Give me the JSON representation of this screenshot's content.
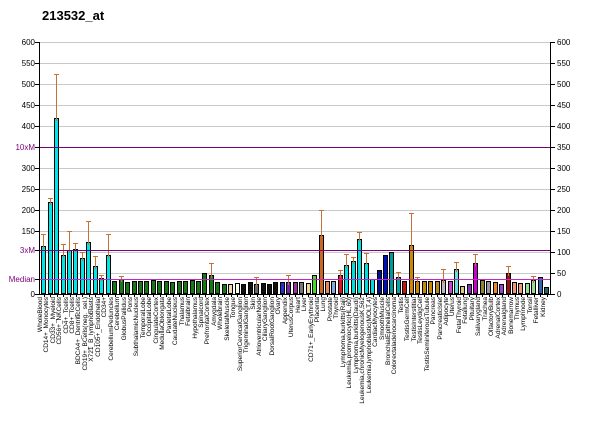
{
  "title": "213532_at",
  "colors": {
    "background": "#ffffff",
    "gridline": "#c9c9c9",
    "axis": "#000000",
    "error_bar": "#c87137",
    "ref_line_purple": "#7a007a",
    "ref_line_median": "#cc22cc",
    "special_label": "#7a007a"
  },
  "chart_data": {
    "type": "bar",
    "title": "213532_at",
    "xlabel": "",
    "ylabel": "",
    "ylim": [
      0,
      600
    ],
    "ytick_interval": 50,
    "grid": true,
    "legend_position": "none",
    "left_axis_labels": [
      {
        "value": 600,
        "text": "600",
        "special": false
      },
      {
        "value": 550,
        "text": "550",
        "special": false
      },
      {
        "value": 500,
        "text": "500",
        "special": false
      },
      {
        "value": 450,
        "text": "450",
        "special": false
      },
      {
        "value": 400,
        "text": "400",
        "special": false
      },
      {
        "value": 350,
        "text": "10xM",
        "special": true
      },
      {
        "value": 300,
        "text": "300",
        "special": false
      },
      {
        "value": 250,
        "text": "250",
        "special": false
      },
      {
        "value": 200,
        "text": "200",
        "special": false
      },
      {
        "value": 150,
        "text": "150",
        "special": false
      },
      {
        "value": 105,
        "text": "3xM",
        "special": true
      },
      {
        "value": 35,
        "text": "Median",
        "special": true
      },
      {
        "value": 0,
        "text": "0",
        "special": false
      }
    ],
    "right_axis_labels": [
      {
        "value": 600,
        "text": "600"
      },
      {
        "value": 550,
        "text": "550"
      },
      {
        "value": 500,
        "text": "500"
      },
      {
        "value": 450,
        "text": "450"
      },
      {
        "value": 400,
        "text": "400"
      },
      {
        "value": 350,
        "text": "350"
      },
      {
        "value": 300,
        "text": "300"
      },
      {
        "value": 250,
        "text": "250"
      },
      {
        "value": 200,
        "text": "200"
      },
      {
        "value": 150,
        "text": "150"
      },
      {
        "value": 100,
        "text": "100"
      },
      {
        "value": 50,
        "text": "50"
      },
      {
        "value": 0,
        "text": "0"
      }
    ],
    "reference_lines": [
      {
        "name": "10xM",
        "value": 350,
        "color": "#7a007a"
      },
      {
        "name": "3xM",
        "value": 105,
        "color": "#7a007a"
      },
      {
        "name": "Median",
        "value": 35,
        "color": "#cc22cc"
      }
    ],
    "samples": [
      {
        "label": "WholeBlood",
        "value": 115,
        "error": 143,
        "color": "#00e5e5"
      },
      {
        "label": "CD14+_Monocytes",
        "value": 220,
        "error": 228,
        "color": "#00e5e5"
      },
      {
        "label": "CD33+_Myeloid",
        "value": 418,
        "error": 524,
        "color": "#00e5e5"
      },
      {
        "label": "CD56+_NKCells",
        "value": 92,
        "error": 118,
        "color": "#00e5e5"
      },
      {
        "label": "CD4+_Tcells",
        "value": 105,
        "error": 150,
        "color": "#00e5e5"
      },
      {
        "label": "CD8+_Tcells",
        "value": 108,
        "error": 122,
        "color": "#00e5e5"
      },
      {
        "label": "BDCA4+_DentriticCells",
        "value": 86,
        "error": 100,
        "color": "#00e5e5"
      },
      {
        "label": "CD19+_BCells(neg._sel.)",
        "value": 124,
        "error": 174,
        "color": "#00e5e5"
      },
      {
        "label": "X721_B_lymphoblasts",
        "value": 66,
        "error": 90,
        "color": "#00e5e5"
      },
      {
        "label": "CD105+_Endothelial",
        "value": 38,
        "error": 46,
        "color": "#00e5e5"
      },
      {
        "label": "CD34+",
        "value": 92,
        "error": 144,
        "color": "#00e5e5"
      },
      {
        "label": "CerebellumPeduncles",
        "value": 30,
        "error": null,
        "color": "#157a15"
      },
      {
        "label": "Cerebellum",
        "value": 36,
        "error": 44,
        "color": "#157a15"
      },
      {
        "label": "GlobusPallidus",
        "value": 28,
        "error": null,
        "color": "#157a15"
      },
      {
        "label": "Pons",
        "value": 30,
        "error": null,
        "color": "#157a15"
      },
      {
        "label": "SubthalamicNucleus",
        "value": 30,
        "error": null,
        "color": "#157a15"
      },
      {
        "label": "TemporalLobe",
        "value": 31,
        "error": null,
        "color": "#157a15"
      },
      {
        "label": "OccipitalLobe",
        "value": 33,
        "error": null,
        "color": "#157a15"
      },
      {
        "label": "CingulateCortex",
        "value": 30,
        "error": null,
        "color": "#157a15"
      },
      {
        "label": "MedullaOblongata",
        "value": 32,
        "error": null,
        "color": "#157a15"
      },
      {
        "label": "ParietalLobe",
        "value": 29,
        "error": null,
        "color": "#157a15"
      },
      {
        "label": "CaudateNucleus",
        "value": 31,
        "error": null,
        "color": "#157a15"
      },
      {
        "label": "Thalamus",
        "value": 30,
        "error": null,
        "color": "#157a15"
      },
      {
        "label": "Fetalbrain",
        "value": 34,
        "error": null,
        "color": "#157a15"
      },
      {
        "label": "Hypothalamus",
        "value": 31,
        "error": null,
        "color": "#157a15"
      },
      {
        "label": "Spinalcord",
        "value": 50,
        "error": null,
        "color": "#157a15"
      },
      {
        "label": "PrefrontalCortex",
        "value": 46,
        "error": 74,
        "color": "#157a15"
      },
      {
        "label": "Amygdala",
        "value": 29,
        "error": null,
        "color": "#157a15"
      },
      {
        "label": "Wholebrain",
        "value": 25,
        "error": null,
        "color": "#157a15"
      },
      {
        "label": "SkeletalMuscle",
        "value": 25,
        "error": null,
        "color": "#f0dcaa"
      },
      {
        "label": "Tongue",
        "value": 27,
        "error": null,
        "color": "#fffff0"
      },
      {
        "label": "SuperiorCervicalGanglion",
        "value": 25,
        "error": null,
        "color": "#111111"
      },
      {
        "label": "TrigeminalGanglion",
        "value": 28,
        "error": null,
        "color": "#111111"
      },
      {
        "label": "Skin",
        "value": 25,
        "error": 40,
        "color": "#696969"
      },
      {
        "label": "AtrioventricularNode",
        "value": 27,
        "error": null,
        "color": "#111111"
      },
      {
        "label": "CiliaryGanglion",
        "value": 24,
        "error": null,
        "color": "#111111"
      },
      {
        "label": "DorsalRootGanglion",
        "value": 28,
        "error": null,
        "color": "#111111"
      },
      {
        "label": "Ovary",
        "value": 28,
        "error": null,
        "color": "#2233cc"
      },
      {
        "label": "Appendix",
        "value": 29,
        "error": 45,
        "color": "#7722aa"
      },
      {
        "label": "UterusCorpus",
        "value": 29,
        "error": null,
        "color": "#993399"
      },
      {
        "label": "Heart",
        "value": 29,
        "error": null,
        "color": "#777777"
      },
      {
        "label": "Liver",
        "value": 26,
        "error": null,
        "color": "#e8d8a0"
      },
      {
        "label": "CD71+_EarlyErythroid",
        "value": 45,
        "error": null,
        "color": "#44dd22"
      },
      {
        "label": "Placenta",
        "value": 140,
        "error": 200,
        "color": "#cc6622"
      },
      {
        "label": "Lung",
        "value": 30,
        "error": null,
        "color": "#e88860"
      },
      {
        "label": "Prostate",
        "value": 32,
        "error": null,
        "color": "#88aadd"
      },
      {
        "label": "Thyroid",
        "value": 46,
        "error": 58,
        "color": "#dd1122"
      },
      {
        "label": "Lymphoma,burkitts(Raji)",
        "value": 70,
        "error": 95,
        "color": "#00dede"
      },
      {
        "label": "Leukemia,promyelocytic(HL,60)",
        "value": 78,
        "error": 88,
        "color": "#00dede"
      },
      {
        "label": "Lymphoma,burkitts(Daudi)",
        "value": 132,
        "error": 148,
        "color": "#00dede"
      },
      {
        "label": "Leukemia,chronicMyelogenousK,562",
        "value": 75,
        "error": 98,
        "color": "#00dede"
      },
      {
        "label": "Leukemia,lymphoblastic(MOLT,4)",
        "value": 36,
        "error": null,
        "color": "#00dede"
      },
      {
        "label": "CardiacMyocytes",
        "value": 58,
        "error": null,
        "color": "#001199"
      },
      {
        "label": "SmoothMuscle",
        "value": 93,
        "error": null,
        "color": "#0011bb"
      },
      {
        "label": "BronchialEpithelialCells",
        "value": 99,
        "error": null,
        "color": "#009999"
      },
      {
        "label": "Colorectaladenocarcinoma",
        "value": 41,
        "error": 52,
        "color": "#00aaaa"
      },
      {
        "label": "Testis",
        "value": 30,
        "error": null,
        "color": "#cc1111"
      },
      {
        "label": "TestisGermCell",
        "value": 117,
        "error": 192,
        "color": "#cc8800"
      },
      {
        "label": "TestisInterstitial",
        "value": 31,
        "error": 40,
        "color": "#cc8800"
      },
      {
        "label": "TestisLeydigCell",
        "value": 30,
        "error": null,
        "color": "#cc8800"
      },
      {
        "label": "TestisSeminiferousTubule",
        "value": 30,
        "error": null,
        "color": "#cc8800"
      },
      {
        "label": "Pancreas",
        "value": 31,
        "error": null,
        "color": "#bb8822"
      },
      {
        "label": "PancreaticIslet",
        "value": 34,
        "error": 60,
        "color": "#bbbbbb"
      },
      {
        "label": "Adipocyte",
        "value": 32,
        "error": null,
        "color": "#cc44cc"
      },
      {
        "label": "Uterus",
        "value": 59,
        "error": 76,
        "color": "#66e0d8"
      },
      {
        "label": "FetalThyroid",
        "value": 20,
        "error": null,
        "color": "#ddcc77"
      },
      {
        "label": "Fetallung",
        "value": 24,
        "error": null,
        "color": "#8833bb"
      },
      {
        "label": "Pituitary",
        "value": 74,
        "error": 96,
        "color": "#cc00cc"
      },
      {
        "label": "Salivarygland",
        "value": 33,
        "error": null,
        "color": "#888833"
      },
      {
        "label": "Trachea",
        "value": 31,
        "error": null,
        "color": "#999999"
      },
      {
        "label": "OlfactoryBulb",
        "value": 28,
        "error": null,
        "color": "#ee8822"
      },
      {
        "label": "AdrenalCortex",
        "value": 25,
        "error": null,
        "color": "#9944cc"
      },
      {
        "label": "Adrenalgland",
        "value": 50,
        "error": 66,
        "color": "#991111"
      },
      {
        "label": "Bonemarrow",
        "value": 29,
        "error": null,
        "color": "#ee9977"
      },
      {
        "label": "Thymus",
        "value": 26,
        "error": null,
        "color": "#ee9977"
      },
      {
        "label": "Lymphnode",
        "value": 26,
        "error": null,
        "color": "#99dd99"
      },
      {
        "label": "Tonsil",
        "value": 33,
        "error": 44,
        "color": "#99dd99"
      },
      {
        "label": "Fetalliver",
        "value": 41,
        "error": null,
        "color": "#3366aa"
      },
      {
        "label": "Kidney",
        "value": 16,
        "error": null,
        "color": "#226666"
      }
    ]
  }
}
